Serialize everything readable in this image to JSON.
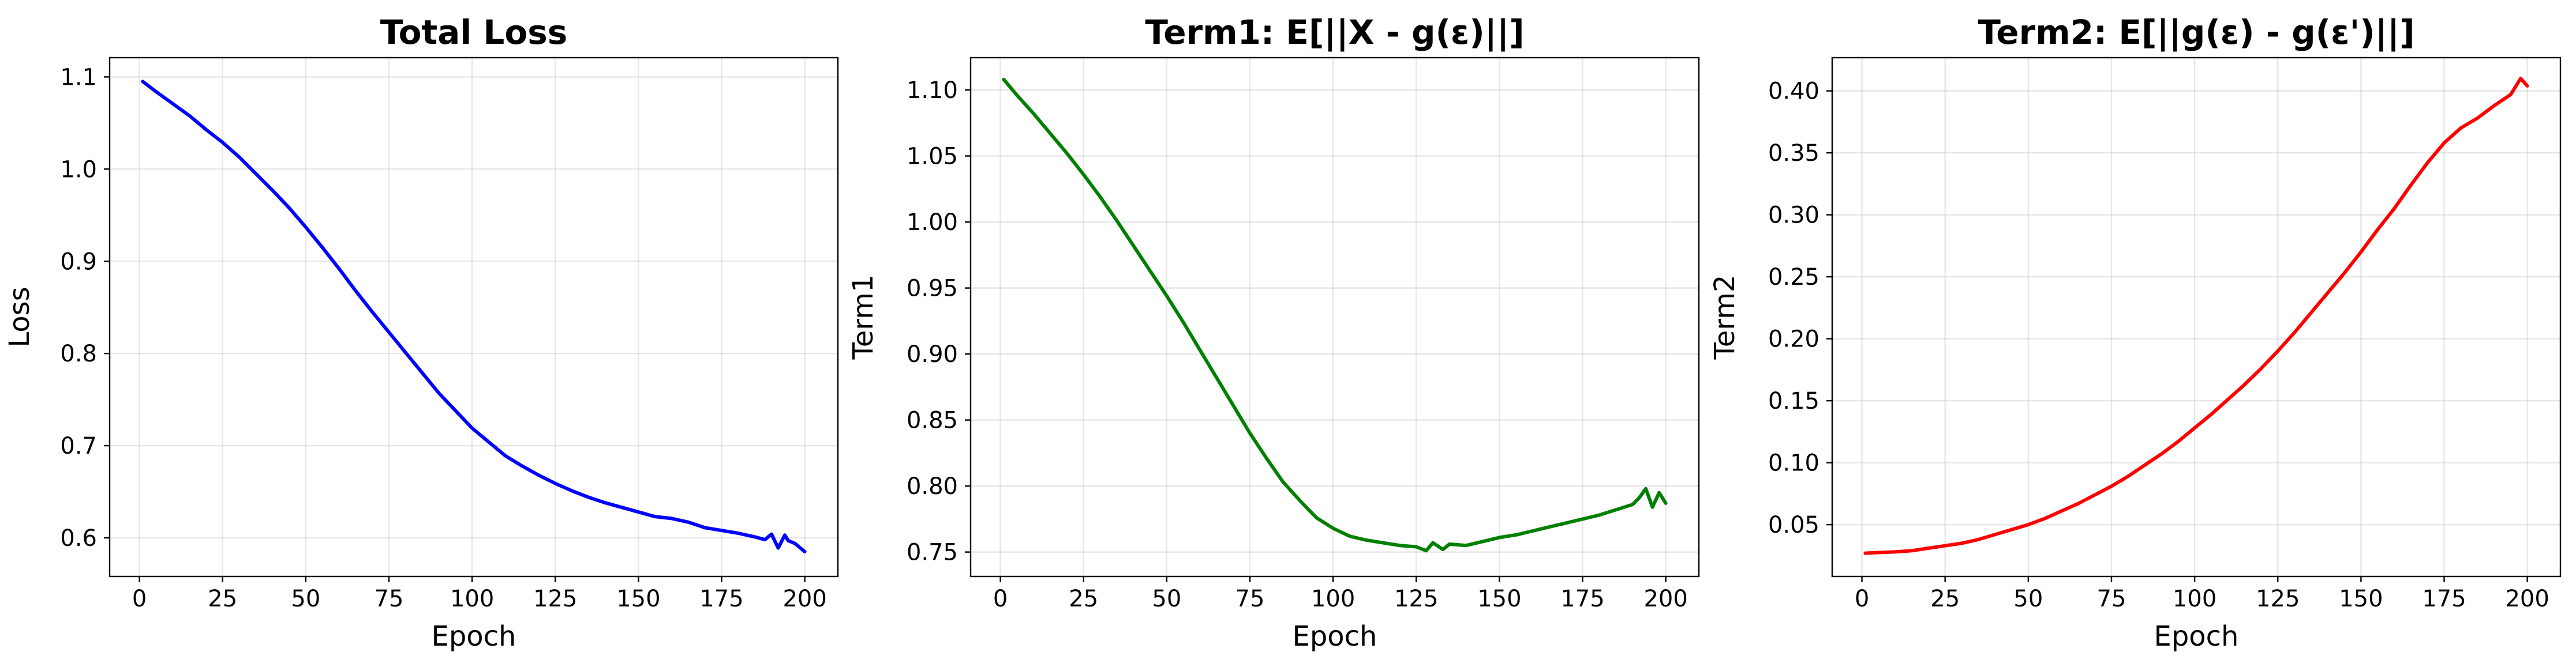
{
  "chart_data": [
    {
      "type": "line",
      "title": "Total Loss",
      "xlabel": "Epoch",
      "ylabel": "Loss",
      "xlim": [
        -8.95,
        209.95
      ],
      "ylim": [
        0.5581,
        1.1209
      ],
      "xticks": [
        0,
        25,
        50,
        75,
        100,
        125,
        150,
        175,
        200
      ],
      "yticks": [
        0.6,
        0.7,
        0.8,
        0.9,
        1.0,
        1.1
      ],
      "ytick_labels": [
        "0.6",
        "0.7",
        "0.8",
        "0.9",
        "1.0",
        "1.1"
      ],
      "grid": true,
      "color": "#0000ff",
      "series": [
        {
          "x": [
            1,
            5,
            10,
            15,
            20,
            25,
            30,
            35,
            40,
            45,
            50,
            55,
            60,
            65,
            70,
            75,
            80,
            85,
            90,
            95,
            100,
            105,
            110,
            115,
            120,
            125,
            130,
            135,
            140,
            145,
            150,
            155,
            160,
            165,
            170,
            175,
            180,
            185,
            188,
            190,
            192,
            194,
            195,
            197,
            200
          ],
          "y": [
            1.095,
            1.084,
            1.071,
            1.058,
            1.043,
            1.029,
            1.013,
            0.995,
            0.977,
            0.958,
            0.937,
            0.915,
            0.892,
            0.868,
            0.845,
            0.823,
            0.801,
            0.779,
            0.757,
            0.738,
            0.719,
            0.704,
            0.689,
            0.678,
            0.668,
            0.659,
            0.651,
            0.644,
            0.638,
            0.633,
            0.628,
            0.623,
            0.621,
            0.617,
            0.611,
            0.608,
            0.605,
            0.601,
            0.598,
            0.604,
            0.589,
            0.603,
            0.597,
            0.594,
            0.585
          ]
        }
      ]
    },
    {
      "type": "line",
      "title": "Term1: E[||X - g(ε)||]",
      "xlabel": "Epoch",
      "ylabel": "Term1",
      "xlim": [
        -8.95,
        209.95
      ],
      "ylim": [
        0.7315,
        1.1245
      ],
      "xticks": [
        0,
        25,
        50,
        75,
        100,
        125,
        150,
        175,
        200
      ],
      "yticks": [
        0.75,
        0.8,
        0.85,
        0.9,
        0.95,
        1.0,
        1.05,
        1.1
      ],
      "ytick_labels": [
        "0.75",
        "0.80",
        "0.85",
        "0.90",
        "0.95",
        "1.00",
        "1.05",
        "1.10"
      ],
      "grid": true,
      "color": "#008000",
      "series": [
        {
          "x": [
            1,
            5,
            10,
            15,
            20,
            25,
            30,
            35,
            40,
            45,
            50,
            55,
            60,
            65,
            70,
            75,
            80,
            85,
            90,
            95,
            100,
            105,
            110,
            115,
            120,
            125,
            128,
            130,
            133,
            135,
            140,
            145,
            150,
            155,
            160,
            165,
            170,
            175,
            180,
            185,
            190,
            192,
            194,
            196,
            198,
            200
          ],
          "y": [
            1.108,
            1.096,
            1.082,
            1.067,
            1.052,
            1.036,
            1.019,
            1.001,
            0.982,
            0.963,
            0.944,
            0.924,
            0.903,
            0.882,
            0.861,
            0.84,
            0.821,
            0.803,
            0.789,
            0.776,
            0.768,
            0.762,
            0.759,
            0.757,
            0.755,
            0.754,
            0.751,
            0.757,
            0.752,
            0.756,
            0.755,
            0.758,
            0.761,
            0.763,
            0.766,
            0.769,
            0.772,
            0.775,
            0.778,
            0.782,
            0.786,
            0.791,
            0.798,
            0.784,
            0.795,
            0.787
          ]
        }
      ]
    },
    {
      "type": "line",
      "title": "Term2: E[||g(ε) - g(ε')||]",
      "xlabel": "Epoch",
      "ylabel": "Term2",
      "xlim": [
        -8.95,
        209.95
      ],
      "ylim": [
        0.0082,
        0.4268
      ],
      "xticks": [
        0,
        25,
        50,
        75,
        100,
        125,
        150,
        175,
        200
      ],
      "yticks": [
        0.05,
        0.1,
        0.15,
        0.2,
        0.25,
        0.3,
        0.35,
        0.4
      ],
      "ytick_labels": [
        "0.05",
        "0.10",
        "0.15",
        "0.20",
        "0.25",
        "0.30",
        "0.35",
        "0.40"
      ],
      "grid": true,
      "color": "#ff0000",
      "series": [
        {
          "x": [
            1,
            5,
            10,
            15,
            20,
            25,
            30,
            35,
            40,
            45,
            50,
            55,
            60,
            65,
            70,
            75,
            80,
            85,
            90,
            95,
            100,
            105,
            110,
            115,
            120,
            125,
            130,
            135,
            140,
            145,
            150,
            155,
            160,
            165,
            170,
            175,
            180,
            185,
            190,
            195,
            198,
            200
          ],
          "y": [
            0.027,
            0.0275,
            0.028,
            0.029,
            0.031,
            0.033,
            0.035,
            0.038,
            0.042,
            0.046,
            0.05,
            0.055,
            0.061,
            0.067,
            0.074,
            0.081,
            0.089,
            0.098,
            0.107,
            0.117,
            0.128,
            0.139,
            0.151,
            0.163,
            0.176,
            0.19,
            0.205,
            0.221,
            0.237,
            0.253,
            0.27,
            0.288,
            0.305,
            0.324,
            0.342,
            0.358,
            0.37,
            0.378,
            0.388,
            0.397,
            0.41,
            0.404
          ]
        }
      ]
    }
  ]
}
